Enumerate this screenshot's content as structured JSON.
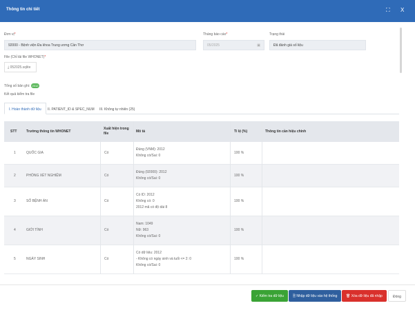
{
  "window": {
    "title": "Thông tin chi tiết",
    "expand_icon": "⛶",
    "close_icon": "X"
  },
  "form": {
    "unit_label": "Đơn vị",
    "unit_value": "92000 - Bệnh viện Đa khoa Trung ương Cần Thơ",
    "month_label": "Tháng báo cáo",
    "month_value": "05/2025",
    "status_label": "Trạng thái",
    "status_value": "Đã đánh giá số liệu",
    "file_label": "File (Chỉ tải file WHONET)",
    "file_button": "052025.sqlite"
  },
  "summary": {
    "total_label": "Tổng số bản ghi:",
    "total_value": "2012",
    "result_label": "Kết quả kiểm tra file"
  },
  "tabs": [
    "I. Hoàn thành dữ liệu",
    "II. PATIENT_ID & SPEC_NUM",
    "III. Không tự nhiên (25)"
  ],
  "table": {
    "headers": [
      "STT",
      "Trường thông tin WHONET",
      "Xuất hiện trong file",
      "Mô tả",
      "Tỉ lệ (%)",
      "Thông tin cần hiệu chỉnh"
    ],
    "rows": [
      {
        "stt": "1",
        "field": "QUỐC GIA",
        "present": "Có",
        "desc": [
          "Đúng (VNM): 2012",
          "Không có/Sai: 0"
        ],
        "rate": "100 %"
      },
      {
        "stt": "2",
        "field": "PHÒNG XÉT NGHIỆM",
        "present": "Có",
        "desc": [
          "Đúng (92000): 2012",
          "Không có/Sai: 0"
        ],
        "rate": "100 %"
      },
      {
        "stt": "3",
        "field": "SỐ BỆNH ÁN",
        "present": "Có",
        "desc": [
          "Có ID: 2012",
          "Không có: 0",
          "2012 mã có độ dài 8"
        ],
        "rate": "100 %"
      },
      {
        "stt": "4",
        "field": "GIỚI TÍNH",
        "present": "Có",
        "desc": [
          "Nam: 1049",
          "Nữ: 963",
          "Không có/Sai: 0"
        ],
        "rate": "100 %"
      },
      {
        "stt": "5",
        "field": "NGÀY SINH",
        "present": "Có",
        "desc": [
          "Có dữ liệu: 2012",
          "- Không có ngày sinh và tuổi <= 2: 0",
          "Không có/Sai: 0"
        ],
        "rate": "100 %"
      }
    ]
  },
  "footer": {
    "check_button": "✓  Kiểm tra dữ liệu",
    "import_button": "🗎  Nhập dữ liệu vào hệ thống",
    "delete_button": "🗑  Xóa dữ liệu đã nhập",
    "close_button": "Đóng"
  },
  "colors": {
    "header": "#2f6bb8",
    "check": "#3aa335",
    "import": "#2f5f9e",
    "delete": "#d9302c"
  }
}
